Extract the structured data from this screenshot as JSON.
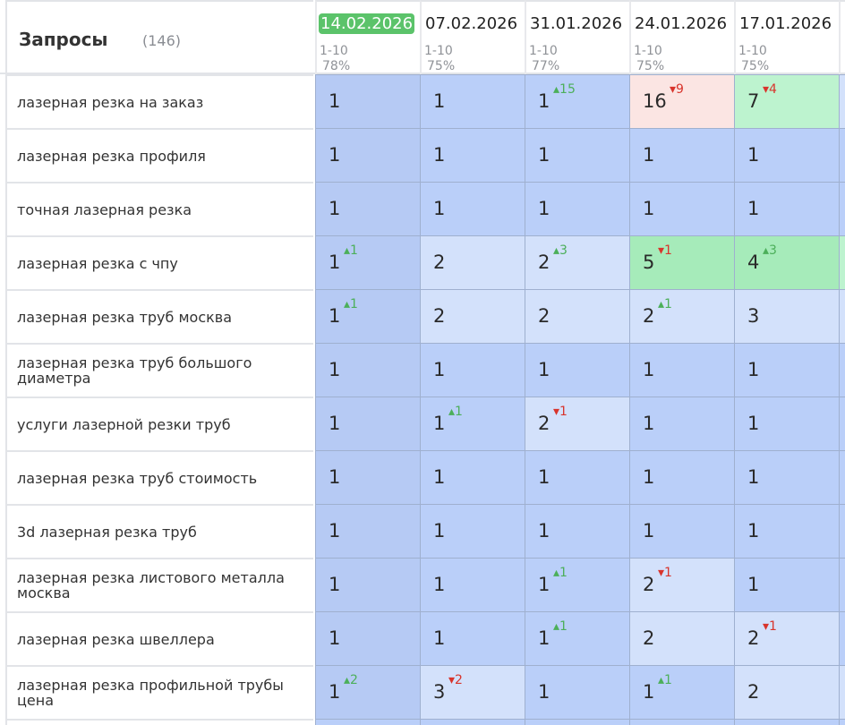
{
  "header": {
    "title": "Запросы",
    "count": "(146)"
  },
  "columns": [
    {
      "date": "14.02.2026",
      "range": "1-10",
      "pct": "78%",
      "selected": true
    },
    {
      "date": "07.02.2026",
      "range": "1-10",
      "pct": "75%"
    },
    {
      "date": "31.01.2026",
      "range": "1-10",
      "pct": "77%"
    },
    {
      "date": "24.01.2026",
      "range": "1-10",
      "pct": "75%"
    },
    {
      "date": "17.01.2026",
      "range": "1-10",
      "pct": "75%"
    }
  ],
  "colors": {
    "pos1": "#bacff9",
    "pos1_selected": "#b6caf4",
    "pos2_3": "#d3e1fb",
    "pos4_5": "#a6ebba",
    "pos6_10": "#bdf3cf",
    "pos11plus": "#fbe5e3",
    "up": "#4caf5a",
    "down": "#d8342c",
    "date_selected": "#5bc36a"
  },
  "rows": [
    {
      "query": "лазерная резка на заказ",
      "cells": [
        {
          "v": "1"
        },
        {
          "v": "1"
        },
        {
          "v": "1",
          "d": "15",
          "dir": "up"
        },
        {
          "v": "16",
          "d": "9",
          "dir": "down"
        },
        {
          "v": "7",
          "d": "4",
          "dir": "down"
        }
      ]
    },
    {
      "query": "лазерная резка профиля",
      "cells": [
        {
          "v": "1"
        },
        {
          "v": "1"
        },
        {
          "v": "1"
        },
        {
          "v": "1"
        },
        {
          "v": "1"
        }
      ]
    },
    {
      "query": "точная лазерная резка",
      "cells": [
        {
          "v": "1"
        },
        {
          "v": "1"
        },
        {
          "v": "1"
        },
        {
          "v": "1"
        },
        {
          "v": "1"
        }
      ]
    },
    {
      "query": "лазерная резка с чпу",
      "cells": [
        {
          "v": "1",
          "d": "1",
          "dir": "up"
        },
        {
          "v": "2"
        },
        {
          "v": "2",
          "d": "3",
          "dir": "up"
        },
        {
          "v": "5",
          "d": "1",
          "dir": "down"
        },
        {
          "v": "4",
          "d": "3",
          "dir": "up"
        }
      ]
    },
    {
      "query": "лазерная резка труб москва",
      "cells": [
        {
          "v": "1",
          "d": "1",
          "dir": "up"
        },
        {
          "v": "2"
        },
        {
          "v": "2"
        },
        {
          "v": "2",
          "d": "1",
          "dir": "up"
        },
        {
          "v": "3"
        }
      ]
    },
    {
      "query": "лазерная резка труб большого диаметра",
      "cells": [
        {
          "v": "1"
        },
        {
          "v": "1"
        },
        {
          "v": "1"
        },
        {
          "v": "1"
        },
        {
          "v": "1"
        }
      ]
    },
    {
      "query": "услуги лазерной резки труб",
      "cells": [
        {
          "v": "1"
        },
        {
          "v": "1",
          "d": "1",
          "dir": "up"
        },
        {
          "v": "2",
          "d": "1",
          "dir": "down"
        },
        {
          "v": "1"
        },
        {
          "v": "1"
        }
      ]
    },
    {
      "query": "лазерная резка труб стоимость",
      "cells": [
        {
          "v": "1"
        },
        {
          "v": "1"
        },
        {
          "v": "1"
        },
        {
          "v": "1"
        },
        {
          "v": "1"
        }
      ]
    },
    {
      "query": "3d лазерная резка труб",
      "cells": [
        {
          "v": "1"
        },
        {
          "v": "1"
        },
        {
          "v": "1"
        },
        {
          "v": "1"
        },
        {
          "v": "1"
        }
      ]
    },
    {
      "query": "лазерная резка листового металла москва",
      "cells": [
        {
          "v": "1"
        },
        {
          "v": "1"
        },
        {
          "v": "1",
          "d": "1",
          "dir": "up"
        },
        {
          "v": "2",
          "d": "1",
          "dir": "down"
        },
        {
          "v": "1"
        }
      ]
    },
    {
      "query": "лазерная резка швеллера",
      "cells": [
        {
          "v": "1"
        },
        {
          "v": "1"
        },
        {
          "v": "1",
          "d": "1",
          "dir": "up"
        },
        {
          "v": "2"
        },
        {
          "v": "2",
          "d": "1",
          "dir": "down"
        }
      ]
    },
    {
      "query": "лазерная резка профильной трубы цена",
      "cells": [
        {
          "v": "1",
          "d": "2",
          "dir": "up"
        },
        {
          "v": "3",
          "d": "2",
          "dir": "down"
        },
        {
          "v": "1"
        },
        {
          "v": "1",
          "d": "1",
          "dir": "up"
        },
        {
          "v": "2"
        }
      ]
    }
  ]
}
